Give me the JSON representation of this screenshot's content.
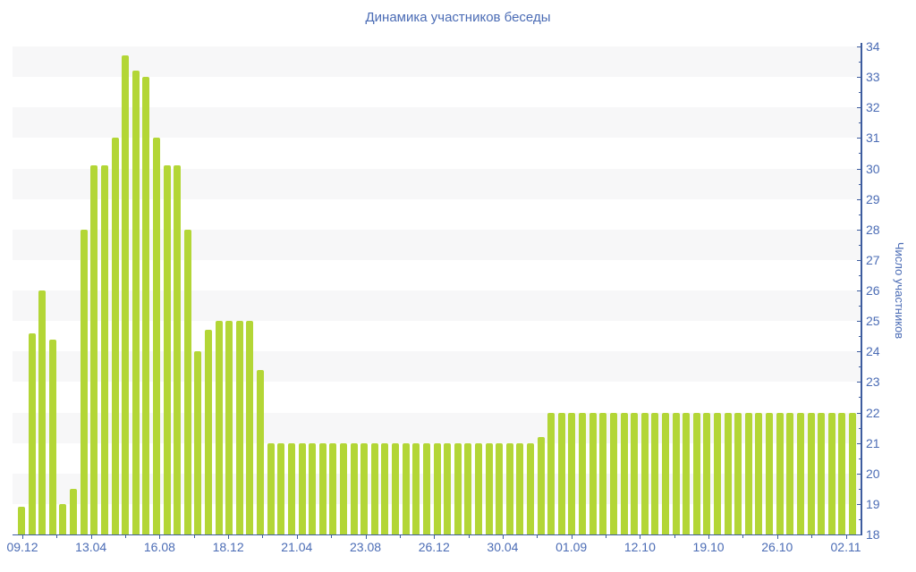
{
  "title": "Динамика участников беседы",
  "colors": {
    "accent_text": "#4b6cb5",
    "axis_line": "#3d5c9e",
    "bar_fill": "#b3d636",
    "stripe": "#f7f7f8",
    "background": "#ffffff"
  },
  "chart_data": {
    "type": "bar",
    "title": "Динамика участников беседы",
    "xlabel": "",
    "ylabel": "Число участников",
    "ylim": [
      18,
      34
    ],
    "grid": "horizontal-stripes",
    "legend": "none",
    "y_ticks": [
      18,
      19,
      20,
      21,
      22,
      23,
      24,
      25,
      26,
      27,
      28,
      29,
      30,
      31,
      32,
      33,
      34
    ],
    "x_tick_labels": [
      "09.12",
      "13.04",
      "16.08",
      "18.12",
      "21.04",
      "23.08",
      "26.12",
      "30.04",
      "01.09",
      "12.10",
      "19.10",
      "26.10",
      "02.11"
    ],
    "values": [
      18.9,
      24.6,
      26.0,
      24.4,
      19.0,
      19.5,
      28.0,
      30.1,
      30.1,
      31.0,
      33.7,
      33.2,
      33.0,
      31.0,
      30.1,
      30.1,
      28.0,
      24.0,
      24.7,
      25.0,
      25.0,
      25.0,
      25.0,
      23.4,
      21.0,
      21.0,
      21.0,
      21.0,
      21.0,
      21.0,
      21.0,
      21.0,
      21.0,
      21.0,
      21.0,
      21.0,
      21.0,
      21.0,
      21.0,
      21.0,
      21.0,
      21.0,
      21.0,
      21.0,
      21.0,
      21.0,
      21.0,
      21.0,
      21.0,
      21.0,
      21.2,
      22.0,
      22.0,
      22.0,
      22.0,
      22.0,
      22.0,
      22.0,
      22.0,
      22.0,
      22.0,
      22.0,
      22.0,
      22.0,
      22.0,
      22.0,
      22.0,
      22.0,
      22.0,
      22.0,
      22.0,
      22.0,
      22.0,
      22.0,
      22.0,
      22.0,
      22.0,
      22.0,
      22.0,
      22.0,
      22.0
    ]
  }
}
